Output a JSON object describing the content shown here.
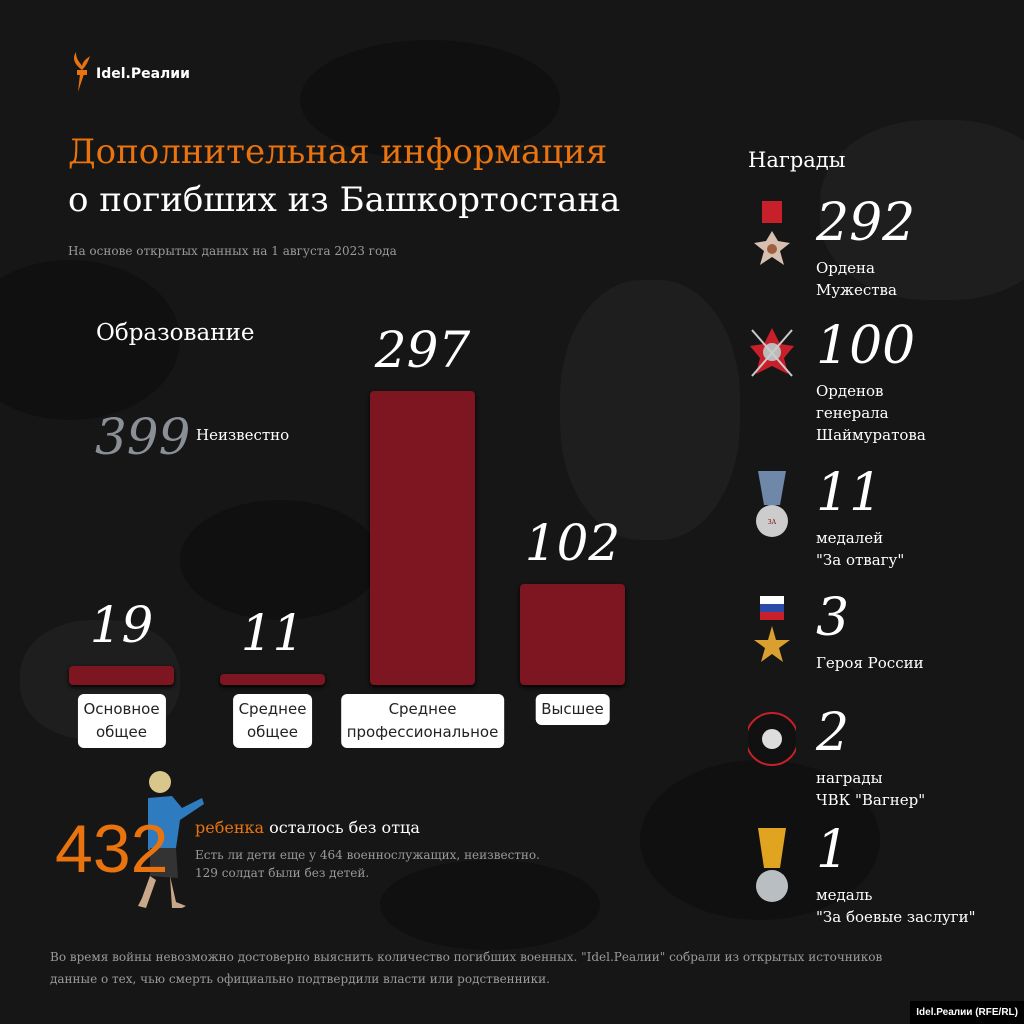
{
  "logo": {
    "text": "Idel.Реалии"
  },
  "header": {
    "title_line1": "Дополнительная информация",
    "title_line2": "о погибших из Башкортостана",
    "subtitle": "На основе открытых данных на 1 августа 2023 года"
  },
  "education": {
    "heading": "Образование",
    "unknown_value": "399",
    "unknown_label": "Неизвестно"
  },
  "chart_data": {
    "type": "bar",
    "title": "Образование",
    "categories": [
      "Основное общее",
      "Среднее общее",
      "Среднее профессиональное",
      "Высшее"
    ],
    "category_lines": [
      [
        "Основное",
        "общее"
      ],
      [
        "Среднее",
        "общее"
      ],
      [
        "Среднее",
        "профессиональное"
      ],
      [
        "Высшее"
      ]
    ],
    "values": [
      19,
      11,
      297,
      102
    ],
    "value_labels": [
      "19",
      "11",
      "297",
      "102"
    ],
    "color": "#7d1620",
    "grid": false
  },
  "children": {
    "number": "432",
    "highlight": "ребенка",
    "rest": " осталось без отца",
    "line1": "Есть ли дети еще у 464 военнослужащих, неизвестно.",
    "line2": "129 солдат были без детей."
  },
  "footer": {
    "line1": "Во время войны невозможно достоверно выяснить количество погибших военных. \"Idel.Реалии\" собрали из открытых источников",
    "line2": "данные о тех, чью смерть официально подтвердили власти или родственники."
  },
  "credit": "Idel.Реалии (RFE/RL)",
  "awards": {
    "heading": "Награды",
    "items": [
      {
        "number": "292",
        "lines": [
          "Ордена",
          "Мужества"
        ],
        "icon": "order-of-courage-icon"
      },
      {
        "number": "100",
        "lines": [
          "Орденов",
          "генерала",
          "Шаймуратова"
        ],
        "icon": "order-shaimuratov-icon"
      },
      {
        "number": "11",
        "lines": [
          "медалей",
          "\"За отвагу\""
        ],
        "icon": "medal-for-courage-icon"
      },
      {
        "number": "3",
        "lines": [
          "Героя России"
        ],
        "icon": "hero-of-russia-star-icon"
      },
      {
        "number": "2",
        "lines": [
          "награды",
          "ЧВК \"Вагнер\""
        ],
        "icon": "wagner-badge-icon"
      },
      {
        "number": "1",
        "lines": [
          "медаль",
          "\"За боевые заслуги\""
        ],
        "icon": "medal-combat-merit-icon"
      }
    ]
  },
  "colors": {
    "accent": "#e8730f",
    "bar": "#7d1620",
    "background": "#161616"
  }
}
